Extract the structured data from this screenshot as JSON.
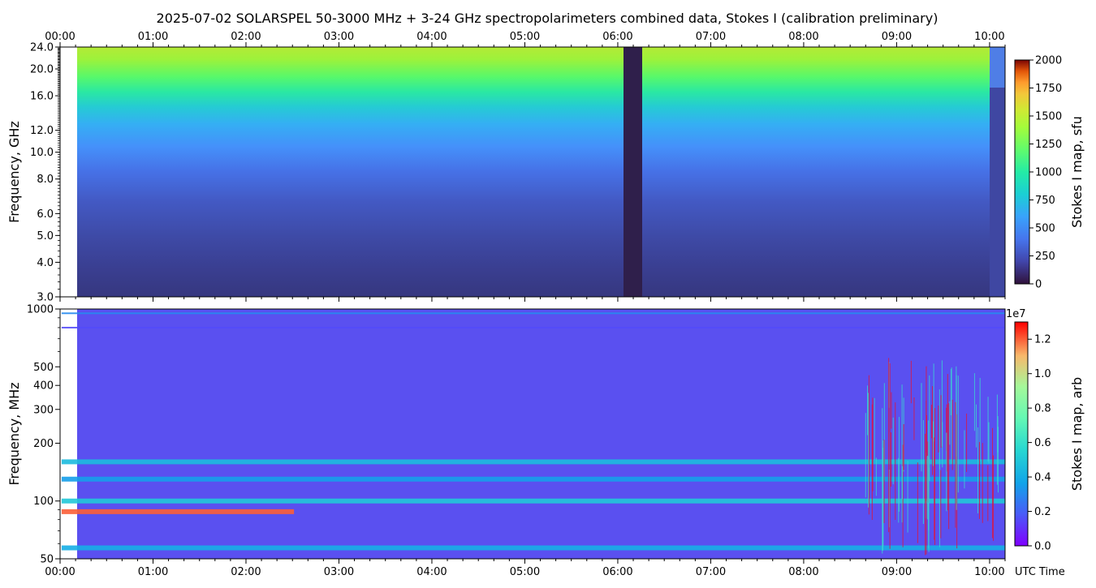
{
  "title": "2025-07-02  SOLARSPEL  50-3000 MHz  +  3-24 GHz  spectropolarimeters combined data,  Stokes I  (calibration preliminary)",
  "chart_data": [
    {
      "type": "heatmap",
      "panel": "top",
      "ylabel": "Frequency, GHz",
      "yscale": "log",
      "ylim": [
        3.0,
        24.0
      ],
      "yticks": [
        "3.0",
        "4.0",
        "5.0",
        "6.0",
        "8.0",
        "10.0",
        "12.0",
        "16.0",
        "20.0",
        "24.0"
      ],
      "xlim": [
        "00:00",
        "10:10"
      ],
      "xticks": [
        "00:00",
        "01:00",
        "02:00",
        "03:00",
        "04:00",
        "05:00",
        "06:00",
        "07:00",
        "08:00",
        "09:00",
        "10:00"
      ],
      "data_start": "00:01",
      "data_gap": [
        "06:00",
        "06:12"
      ],
      "colorbar": {
        "label": "Stokes I map, sfu",
        "min": 0,
        "max": 2000,
        "ticks": [
          "0",
          "250",
          "500",
          "750",
          "1000",
          "1250",
          "1500",
          "1750",
          "2000"
        ],
        "colormap": "turbo"
      },
      "approx_intensity_sfu": [
        {
          "freq_ghz": 24.0,
          "value": 1500
        },
        {
          "freq_ghz": 20.0,
          "value": 1250
        },
        {
          "freq_ghz": 16.0,
          "value": 850
        },
        {
          "freq_ghz": 12.0,
          "value": 520
        },
        {
          "freq_ghz": 10.0,
          "value": 380
        },
        {
          "freq_ghz": 8.0,
          "value": 300
        },
        {
          "freq_ghz": 6.0,
          "value": 250
        },
        {
          "freq_ghz": 5.0,
          "value": 220
        },
        {
          "freq_ghz": 4.0,
          "value": 200
        },
        {
          "freq_ghz": 3.0,
          "value": 180
        }
      ]
    },
    {
      "type": "heatmap",
      "panel": "bottom",
      "ylabel": "Frequency, MHz",
      "yscale": "log",
      "ylim": [
        50,
        1000
      ],
      "yticks": [
        "50",
        "100",
        "200",
        "300",
        "400",
        "500",
        "1000"
      ],
      "xlabel": "UTC Time",
      "xlim": [
        "00:00",
        "10:10"
      ],
      "xticks": [
        "00:00",
        "01:00",
        "02:00",
        "03:00",
        "04:00",
        "05:00",
        "06:00",
        "07:00",
        "08:00",
        "09:00",
        "10:00"
      ],
      "data_start": "00:01",
      "colorbar": {
        "label": "Stokes I map, arb",
        "multiplier": "1e7",
        "min": 0.0,
        "max": 1.3,
        "ticks": [
          "0.0",
          "0.2",
          "0.4",
          "0.6",
          "0.8",
          "1.0",
          "1.2"
        ],
        "colormap": "rainbow"
      },
      "bands_mhz": [
        {
          "freq": 57,
          "value": 0.4
        },
        {
          "freq": 88,
          "value": 1.2
        },
        {
          "freq": 100,
          "value": 0.5
        },
        {
          "freq": 130,
          "value": 0.35
        },
        {
          "freq": 160,
          "value": 0.45
        },
        {
          "freq": 800,
          "value": 0.15
        },
        {
          "freq": 950,
          "value": 0.3
        }
      ],
      "interference_start": "08:40"
    }
  ]
}
